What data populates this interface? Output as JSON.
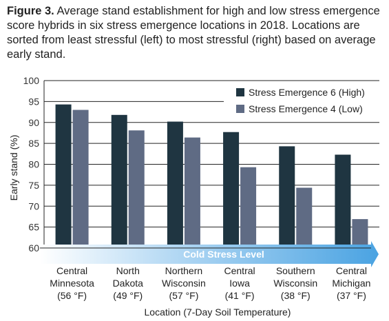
{
  "caption": {
    "label": "Figure 3.",
    "text": "Average stand establishment for high and low stress emergence score hybrids in six stress emergence locations in 2018. Locations are sorted from least stressful (left) to most stressful (right) based on average early stand."
  },
  "chart_data": {
    "type": "bar",
    "ylabel": "Early stand (%)",
    "xlabel": "Location (7-Day Soil Temperature)",
    "ylim": [
      60,
      100
    ],
    "yticks": [
      60,
      65,
      70,
      75,
      80,
      85,
      90,
      95,
      100
    ],
    "grid": true,
    "legend_position": "top-right",
    "categories": [
      [
        "Central",
        "Minnesota",
        "(56 °F)"
      ],
      [
        "North",
        "Dakota",
        "(49 °F)"
      ],
      [
        "Northern",
        "Wisconsin",
        "(57 °F)"
      ],
      [
        "Central",
        "Iowa",
        "(41 °F)"
      ],
      [
        "Southern",
        "Wisconsin",
        "(38 °F)"
      ],
      [
        "Central",
        "Michigan",
        "(37 °F)"
      ]
    ],
    "series": [
      {
        "name": "Stress Emergence 6 (High)",
        "color": "#1f3541",
        "values": [
          94.3,
          91.8,
          90.2,
          87.7,
          84.3,
          82.3
        ]
      },
      {
        "name": "Stress Emergence 4 (Low)",
        "color": "#5f6b84",
        "values": [
          93.0,
          88.1,
          86.4,
          79.3,
          74.4,
          66.9
        ]
      }
    ],
    "annotation": "Cold Stress Level",
    "annotation_color": "#5aa8e0"
  }
}
